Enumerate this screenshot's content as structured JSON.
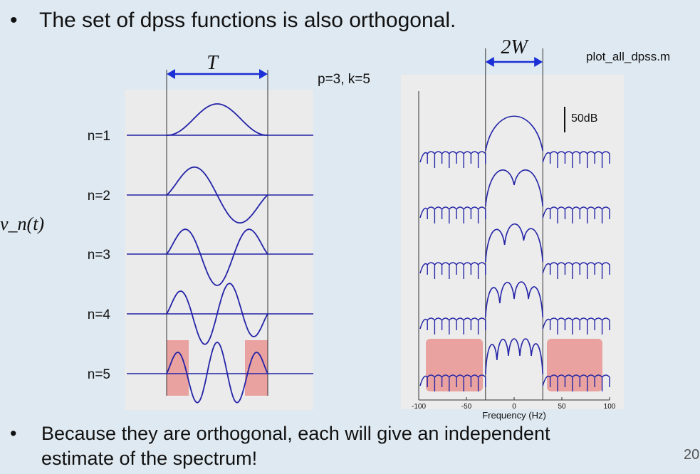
{
  "slide": {
    "top_bullet": "The set of dpss functions is also orthogonal.",
    "bottom_bullet_line1": "Because they are orthogonal, each will give an independent",
    "bottom_bullet_line2": "estimate of the spectrum!",
    "bullet_symbol": "•",
    "param_label": "p=3, k=5",
    "script_label": "plot_all_dpss.m",
    "slide_number": "20",
    "y_axis_label": "v_n(t)"
  },
  "chart_data": [
    {
      "type": "line",
      "panel": "time-domain",
      "interval_label": "T",
      "series": [
        {
          "name": "n=1",
          "shape": "dpss order 1"
        },
        {
          "name": "n=2",
          "shape": "dpss order 2"
        },
        {
          "name": "n=3",
          "shape": "dpss order 3"
        },
        {
          "name": "n=4",
          "shape": "dpss order 4"
        },
        {
          "name": "n=5",
          "shape": "dpss order 5"
        }
      ],
      "highlight": "edges of n=5 taper"
    },
    {
      "type": "line",
      "panel": "frequency-domain",
      "bandwidth_label": "2W",
      "scale_bar_label": "50dB",
      "xlabel": "Frequency (Hz)",
      "x_ticks": [
        -100,
        -50,
        0,
        50,
        100
      ],
      "x_tick_labels": [
        "-100",
        "-50",
        "0",
        "50",
        "100"
      ],
      "xlim": [
        -100,
        100
      ],
      "band_edges": [
        -30,
        30
      ],
      "series_count": 5,
      "highlight": "sidelobes of 5th spectrum"
    }
  ],
  "colors": {
    "curve": "#2323a8",
    "arrow": "#1b2fd6",
    "highlight": "#e88a85",
    "panel_bg": "#ebebeb",
    "slide_bg": "#dfe9f1"
  }
}
